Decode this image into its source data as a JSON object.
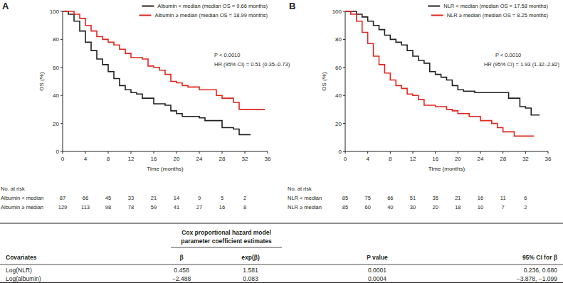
{
  "chart_data": [
    {
      "type": "step",
      "title": "A",
      "xlabel": "Time (months)",
      "ylabel": "OS (%)",
      "xlim": [
        0,
        36
      ],
      "ylim": [
        0,
        100
      ],
      "xticks": [
        0,
        4,
        8,
        12,
        16,
        20,
        24,
        28,
        32,
        36
      ],
      "yticks": [
        0,
        20,
        40,
        60,
        80,
        100
      ],
      "grid": false,
      "legend": "top-right",
      "annotations": [
        "P < 0.0010",
        "HR (95% CI) = 0.51 (0.35–0.73)"
      ],
      "series": [
        {
          "name": "Albumin < median (median OS = 9.66 months)",
          "color": "#231f20",
          "line_style": "solid",
          "x": [
            0,
            1,
            2,
            3,
            4,
            5,
            6,
            7,
            8,
            9,
            10,
            11,
            12,
            13,
            14,
            16,
            18,
            19,
            20,
            21,
            24,
            25,
            28,
            30,
            31,
            33
          ],
          "values": [
            100,
            98,
            93,
            86,
            78,
            72,
            66,
            62,
            57,
            52,
            47,
            44,
            42,
            41,
            38,
            34,
            33,
            29,
            27,
            25,
            24,
            22,
            17,
            16,
            12,
            12
          ]
        },
        {
          "name": "Albumin ≥ median (median OS = 18.99 months)",
          "color": "#e0261f",
          "line_style": "solid",
          "x": [
            0,
            2,
            3,
            4,
            5,
            6,
            7,
            8,
            9,
            10,
            11,
            12,
            14,
            15,
            16,
            17,
            18,
            19,
            20,
            21,
            22,
            24,
            27,
            28,
            30,
            31,
            35.5
          ],
          "values": [
            100,
            98,
            95,
            90,
            86,
            82,
            80,
            78,
            76,
            73,
            70,
            67,
            66,
            61,
            60,
            58,
            55,
            50,
            49,
            47,
            46,
            44,
            40,
            38,
            35,
            30,
            30
          ]
        }
      ],
      "risk_table": {
        "title": "No. at risk",
        "times": [
          0,
          4,
          8,
          12,
          16,
          20,
          24,
          28,
          32
        ],
        "rows": [
          {
            "label": "Albumin < median",
            "values": [
              87,
              66,
              45,
              33,
              21,
              14,
              9,
              5,
              2
            ]
          },
          {
            "label": "Albumin ≥ median",
            "values": [
              129,
              113,
              98,
              78,
              59,
              41,
              27,
              16,
              8
            ]
          }
        ]
      }
    },
    {
      "type": "step",
      "title": "B",
      "xlabel": "Time (months)",
      "ylabel": "OS (%)",
      "xlim": [
        0,
        36
      ],
      "ylim": [
        0,
        100
      ],
      "xticks": [
        0,
        4,
        8,
        12,
        16,
        20,
        24,
        28,
        32,
        36
      ],
      "yticks": [
        0,
        20,
        40,
        60,
        80,
        100
      ],
      "grid": false,
      "legend": "top-right",
      "annotations": [
        "P < 0.0010",
        "HR (95% CI) = 1.93 (1.32–2.82)"
      ],
      "series": [
        {
          "name": "NLR < median (median OS = 17.58 months)",
          "color": "#231f20",
          "line_style": "solid",
          "x": [
            0,
            2,
            3,
            4,
            5,
            6,
            7,
            8,
            9,
            10,
            11,
            12,
            13,
            14,
            15,
            16,
            17,
            18,
            19,
            20,
            21,
            23,
            29,
            31,
            32,
            33,
            34.5
          ],
          "values": [
            100,
            98,
            96,
            93,
            90,
            87,
            83,
            80,
            78,
            76,
            72,
            68,
            65,
            63,
            57,
            55,
            53,
            51,
            47,
            44,
            43,
            42,
            38,
            32,
            31,
            26,
            26
          ]
        },
        {
          "name": "NLR ≥ median (median OS = 8.25 months)",
          "color": "#e0261f",
          "line_style": "solid",
          "x": [
            0,
            1,
            2,
            3,
            4,
            5,
            6,
            7,
            8,
            9,
            10,
            11,
            12,
            13,
            14,
            16,
            18,
            19,
            20,
            22,
            24,
            26,
            27,
            28,
            30,
            33.5
          ],
          "values": [
            100,
            98,
            93,
            85,
            77,
            68,
            62,
            56,
            51,
            47,
            45,
            41,
            40,
            37,
            33,
            32,
            30,
            29,
            27,
            25,
            22,
            20,
            17,
            14,
            11,
            11
          ]
        }
      ],
      "risk_table": {
        "title": "No. at risk",
        "times": [
          0,
          4,
          8,
          12,
          16,
          20,
          24,
          28,
          32
        ],
        "rows": [
          {
            "label": "NLR < median",
            "values": [
              85,
              75,
              66,
              51,
              35,
              21,
              16,
              11,
              6
            ]
          },
          {
            "label": "NLR ≥ median",
            "values": [
              85,
              60,
              40,
              30,
              20,
              18,
              10,
              7,
              2
            ]
          }
        ]
      }
    }
  ],
  "table": {
    "group_header": [
      "Cox proportional hazard model",
      "parameter coefficient estimates"
    ],
    "columns": [
      "Covariates",
      "β",
      "exp(β)",
      "P value",
      "95% CI for β"
    ],
    "rows": [
      [
        "Log(NLR)",
        "0.458",
        "1.581",
        "0.0001",
        "0.236, 0.680"
      ],
      [
        "Log(albumin)",
        "−2.488",
        "0.083",
        "0.0004",
        "−3.878, −1.099"
      ]
    ]
  }
}
